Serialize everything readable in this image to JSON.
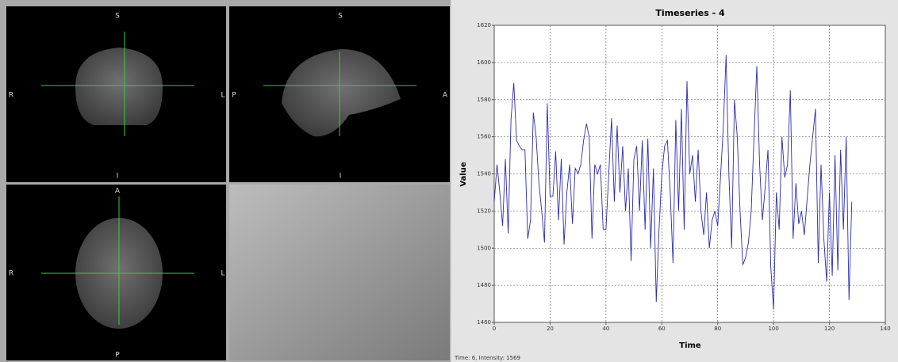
{
  "views": [
    {
      "top": "S",
      "left": "R",
      "right": "L",
      "bottom": "I"
    },
    {
      "top": "S",
      "left": "P",
      "right": "A",
      "bottom": "I"
    },
    {
      "top": "A",
      "left": "R",
      "right": "L",
      "bottom": "P"
    }
  ],
  "status": "Time: 6, Intensity: 1569",
  "chart_data": {
    "type": "line",
    "title": "Timeseries - 4",
    "x_label": "Time",
    "y_label": "Value",
    "color": "#2b2bb0",
    "grid": true,
    "xlim": [
      0,
      140
    ],
    "xticks": [
      0,
      20,
      40,
      60,
      80,
      100,
      120,
      140
    ],
    "ylim": [
      1460,
      1620
    ],
    "yticks": [
      1460,
      1480,
      1500,
      1520,
      1540,
      1560,
      1580,
      1600,
      1620
    ],
    "x": [
      0,
      1,
      2,
      3,
      4,
      5,
      6,
      7,
      8,
      9,
      10,
      11,
      12,
      13,
      14,
      15,
      16,
      17,
      18,
      19,
      20,
      21,
      22,
      23,
      24,
      25,
      26,
      27,
      28,
      29,
      30,
      31,
      32,
      33,
      34,
      35,
      36,
      37,
      38,
      39,
      40,
      41,
      42,
      43,
      44,
      45,
      46,
      47,
      48,
      49,
      50,
      51,
      52,
      53,
      54,
      55,
      56,
      57,
      58,
      59,
      60,
      61,
      62,
      63,
      64,
      65,
      66,
      67,
      68,
      69,
      70,
      71,
      72,
      73,
      74,
      75,
      76,
      77,
      78,
      79,
      80,
      81,
      82,
      83,
      84,
      85,
      86,
      87,
      88,
      89,
      90,
      91,
      92,
      93,
      94,
      95,
      96,
      97,
      98,
      99,
      100,
      101,
      102,
      103,
      104,
      105,
      106,
      107,
      108,
      109,
      110,
      111,
      112,
      113,
      114,
      115,
      116,
      117,
      118,
      119,
      120,
      121,
      122,
      123,
      124,
      125,
      126,
      127,
      128
    ],
    "values": [
      1525,
      1545,
      1530,
      1512,
      1548,
      1508,
      1569,
      1589,
      1558,
      1555,
      1553,
      1553,
      1505,
      1515,
      1573,
      1560,
      1535,
      1520,
      1503,
      1578,
      1528,
      1528,
      1552,
      1515,
      1548,
      1502,
      1530,
      1545,
      1513,
      1543,
      1540,
      1545,
      1558,
      1567,
      1560,
      1505,
      1545,
      1540,
      1545,
      1510,
      1510,
      1540,
      1570,
      1525,
      1566,
      1530,
      1555,
      1520,
      1543,
      1493,
      1548,
      1555,
      1520,
      1558,
      1510,
      1559,
      1500,
      1543,
      1471,
      1510,
      1540,
      1555,
      1558,
      1530,
      1492,
      1569,
      1520,
      1575,
      1510,
      1590,
      1540,
      1550,
      1525,
      1553,
      1520,
      1507,
      1530,
      1500,
      1515,
      1520,
      1512,
      1538,
      1565,
      1604,
      1540,
      1500,
      1580,
      1560,
      1520,
      1491,
      1495,
      1503,
      1520,
      1560,
      1598,
      1545,
      1515,
      1533,
      1553,
      1490,
      1467,
      1530,
      1510,
      1560,
      1538,
      1545,
      1585,
      1505,
      1535,
      1513,
      1520,
      1507,
      1526,
      1545,
      1560,
      1575,
      1492,
      1545,
      1505,
      1482,
      1530,
      1485,
      1550,
      1488,
      1553,
      1510,
      1560,
      1472,
      1525
    ]
  }
}
